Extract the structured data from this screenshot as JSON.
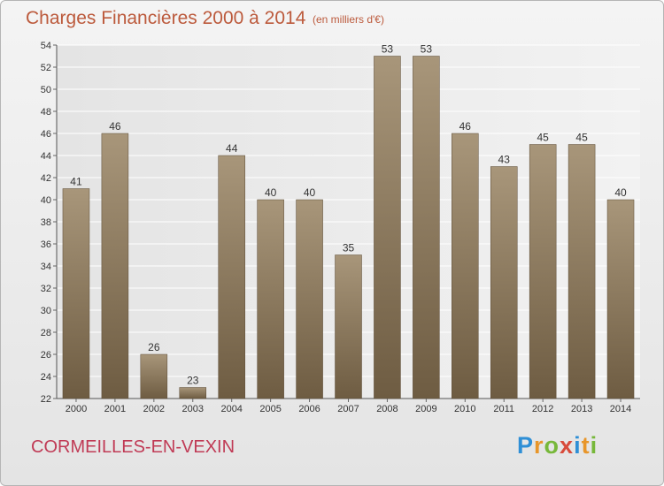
{
  "header": {
    "title": "Charges Financières 2000 à 2014",
    "subtitle": "(en milliers d'€)"
  },
  "footer": {
    "commune": "CORMEILLES-EN-VEXIN",
    "logo": "Proxiti",
    "logo_colors": [
      "#2f8fd6",
      "#e8962a",
      "#77b83a",
      "#d84a3a"
    ]
  },
  "chart_data": {
    "type": "bar",
    "title": "Charges Financières 2000 à 2014",
    "subtitle": "(en milliers d'€)",
    "categories": [
      "2000",
      "2001",
      "2002",
      "2003",
      "2004",
      "2005",
      "2006",
      "2007",
      "2008",
      "2009",
      "2010",
      "2011",
      "2012",
      "2013",
      "2014"
    ],
    "values": [
      41,
      46,
      26,
      23,
      44,
      40,
      40,
      35,
      53,
      53,
      46,
      43,
      45,
      45,
      40
    ],
    "ylim": [
      22,
      54
    ],
    "yticks": [
      22,
      24,
      26,
      28,
      30,
      32,
      34,
      36,
      38,
      40,
      42,
      44,
      46,
      48,
      50,
      52,
      54
    ],
    "grid": true,
    "bar_color": "#7f6a4e",
    "data_labels": true
  }
}
